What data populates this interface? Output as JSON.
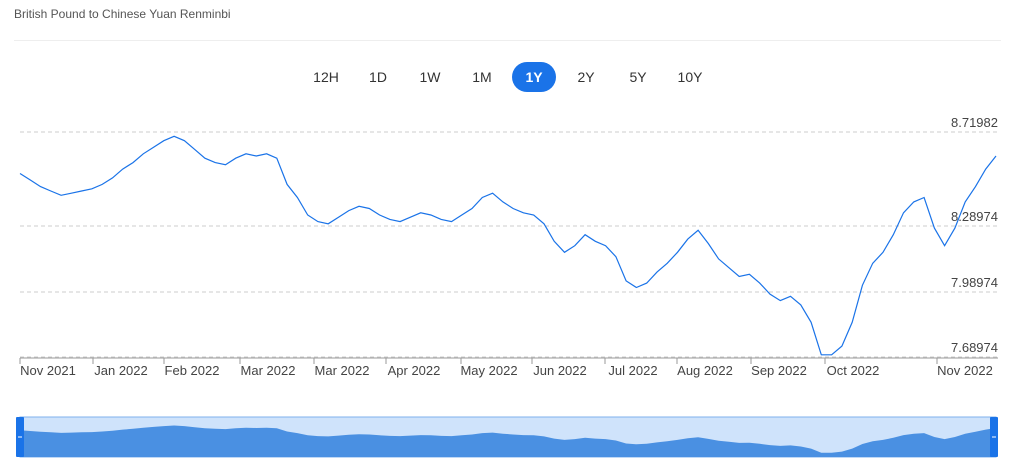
{
  "page": {
    "title": "British Pound to Chinese Yuan Renminbi"
  },
  "range_buttons": [
    {
      "label": "12H",
      "active": false
    },
    {
      "label": "1D",
      "active": false
    },
    {
      "label": "1W",
      "active": false
    },
    {
      "label": "1M",
      "active": false
    },
    {
      "label": "1Y",
      "active": true
    },
    {
      "label": "2Y",
      "active": false
    },
    {
      "label": "5Y",
      "active": false
    },
    {
      "label": "10Y",
      "active": false
    }
  ],
  "colors": {
    "accent": "#1a73e8",
    "line": "#1a73e8",
    "navigator_fill": "#4a90e2",
    "navigator_bg": "#cfe3fb"
  },
  "chart_data": {
    "type": "line",
    "title": "",
    "xlabel": "",
    "ylabel": "",
    "ylim": [
      7.68974,
      8.71982
    ],
    "y_ticks": [
      "8.71982",
      "8.28974",
      "7.98974",
      "7.68974"
    ],
    "x_ticks": [
      "Nov 2021",
      "Jan 2022",
      "Feb 2022",
      "Mar 2022",
      "Mar 2022",
      "Apr 2022",
      "May 2022",
      "Jun 2022",
      "Jul 2022",
      "Aug 2022",
      "Sep 2022",
      "Oct 2022",
      "Nov 2022"
    ],
    "grid": true,
    "series": [
      {
        "values": [
          8.53,
          8.5,
          8.47,
          8.45,
          8.43,
          8.44,
          8.45,
          8.46,
          8.48,
          8.51,
          8.55,
          8.58,
          8.62,
          8.65,
          8.68,
          8.7,
          8.68,
          8.64,
          8.6,
          8.58,
          8.57,
          8.6,
          8.62,
          8.61,
          8.62,
          8.6,
          8.48,
          8.42,
          8.34,
          8.31,
          8.3,
          8.33,
          8.36,
          8.38,
          8.37,
          8.34,
          8.32,
          8.31,
          8.33,
          8.35,
          8.34,
          8.32,
          8.31,
          8.34,
          8.37,
          8.42,
          8.44,
          8.4,
          8.37,
          8.35,
          8.34,
          8.3,
          8.22,
          8.17,
          8.2,
          8.25,
          8.22,
          8.2,
          8.15,
          8.04,
          8.01,
          8.03,
          8.08,
          8.12,
          8.17,
          8.23,
          8.27,
          8.21,
          8.14,
          8.1,
          8.06,
          8.07,
          8.03,
          7.98,
          7.95,
          7.97,
          7.93,
          7.85,
          7.7,
          7.7,
          7.74,
          7.85,
          8.02,
          8.12,
          8.17,
          8.25,
          8.35,
          8.4,
          8.42,
          8.28,
          8.2,
          8.28,
          8.4,
          8.47,
          8.55,
          8.61
        ]
      }
    ]
  }
}
